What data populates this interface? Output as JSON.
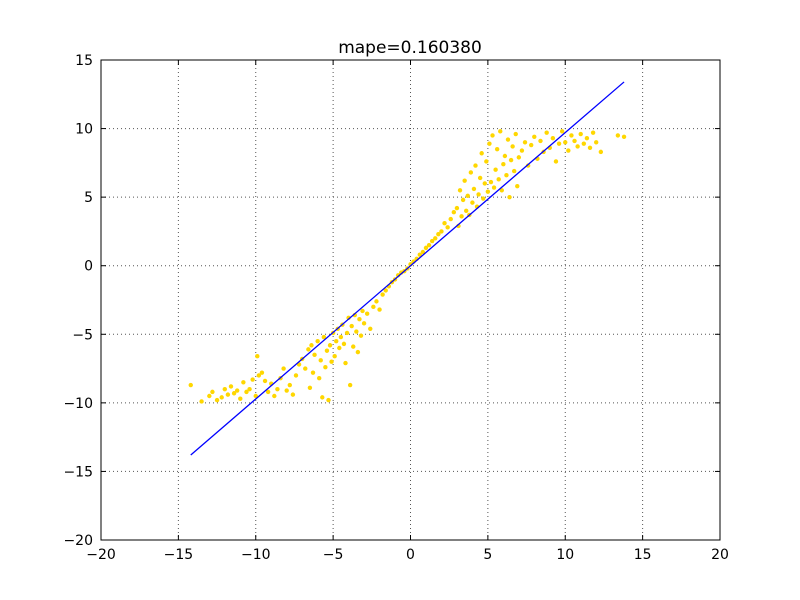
{
  "chart_data": {
    "type": "scatter",
    "title": "mape=0.160380",
    "xlabel": "",
    "ylabel": "",
    "xlim": [
      -20,
      20
    ],
    "ylim": [
      -20,
      15
    ],
    "x_ticks": [
      -20,
      -15,
      -10,
      -5,
      0,
      5,
      10,
      15,
      20
    ],
    "y_ticks": [
      -20,
      -15,
      -10,
      -5,
      0,
      5,
      10,
      15
    ],
    "x_tick_labels": [
      "−20",
      "−15",
      "−10",
      "−5",
      "0",
      "5",
      "10",
      "15",
      "20"
    ],
    "y_tick_labels": [
      "−20",
      "−15",
      "−10",
      "−5",
      "0",
      "5",
      "10",
      "15"
    ],
    "grid": true,
    "grid_style": "dotted",
    "colors": {
      "scatter": "#FFD700",
      "line": "#0000FF",
      "grid": "#555555"
    },
    "series": [
      {
        "kind": "scatter",
        "color": "#FFD700",
        "points": [
          [
            -14.2,
            -8.7
          ],
          [
            -13.5,
            -9.9
          ],
          [
            -13.0,
            -9.5
          ],
          [
            -12.8,
            -9.2
          ],
          [
            -12.5,
            -9.8
          ],
          [
            -12.2,
            -9.6
          ],
          [
            -12.0,
            -9.0
          ],
          [
            -11.8,
            -9.4
          ],
          [
            -11.6,
            -8.8
          ],
          [
            -11.4,
            -9.3
          ],
          [
            -11.2,
            -9.1
          ],
          [
            -11.0,
            -9.7
          ],
          [
            -10.8,
            -8.5
          ],
          [
            -10.6,
            -9.2
          ],
          [
            -10.4,
            -9.0
          ],
          [
            -10.2,
            -8.3
          ],
          [
            -10.0,
            -9.5
          ],
          [
            -9.9,
            -6.6
          ],
          [
            -9.8,
            -8.0
          ],
          [
            -9.6,
            -7.8
          ],
          [
            -9.4,
            -8.4
          ],
          [
            -9.2,
            -9.2
          ],
          [
            -9.0,
            -8.6
          ],
          [
            -8.8,
            -9.5
          ],
          [
            -8.6,
            -9.0
          ],
          [
            -8.4,
            -8.2
          ],
          [
            -8.2,
            -7.5
          ],
          [
            -8.0,
            -9.1
          ],
          [
            -7.8,
            -8.7
          ],
          [
            -7.6,
            -9.4
          ],
          [
            -7.4,
            -8.0
          ],
          [
            -7.2,
            -7.2
          ],
          [
            -7.0,
            -6.8
          ],
          [
            -6.8,
            -7.5
          ],
          [
            -6.6,
            -6.1
          ],
          [
            -6.5,
            -8.9
          ],
          [
            -6.4,
            -5.8
          ],
          [
            -6.3,
            -7.8
          ],
          [
            -6.2,
            -6.5
          ],
          [
            -6.0,
            -5.5
          ],
          [
            -5.9,
            -8.2
          ],
          [
            -5.8,
            -6.9
          ],
          [
            -5.7,
            -9.6
          ],
          [
            -5.6,
            -5.2
          ],
          [
            -5.5,
            -7.4
          ],
          [
            -5.4,
            -6.2
          ],
          [
            -5.3,
            -9.8
          ],
          [
            -5.2,
            -5.8
          ],
          [
            -5.1,
            -7.0
          ],
          [
            -5.0,
            -4.9
          ],
          [
            -4.9,
            -6.6
          ],
          [
            -4.8,
            -5.5
          ],
          [
            -4.7,
            -4.6
          ],
          [
            -4.6,
            -6.0
          ],
          [
            -4.5,
            -5.2
          ],
          [
            -4.4,
            -4.3
          ],
          [
            -4.3,
            -5.7
          ],
          [
            -4.2,
            -7.1
          ],
          [
            -4.1,
            -4.9
          ],
          [
            -4.0,
            -3.8
          ],
          [
            -3.9,
            -8.7
          ],
          [
            -3.8,
            -4.4
          ],
          [
            -3.7,
            -5.9
          ],
          [
            -3.6,
            -3.6
          ],
          [
            -3.5,
            -4.8
          ],
          [
            -3.4,
            -6.3
          ],
          [
            -3.3,
            -3.9
          ],
          [
            -3.2,
            -5.1
          ],
          [
            -3.1,
            -3.3
          ],
          [
            -3.0,
            -4.2
          ],
          [
            -2.8,
            -3.5
          ],
          [
            -2.6,
            -4.6
          ],
          [
            -2.4,
            -3.0
          ],
          [
            -2.2,
            -2.6
          ],
          [
            -2.0,
            -3.2
          ],
          [
            -1.8,
            -2.1
          ],
          [
            -1.6,
            -1.8
          ],
          [
            -1.4,
            -1.5
          ],
          [
            -1.2,
            -1.2
          ],
          [
            -1.0,
            -1.0
          ],
          [
            -0.8,
            -0.7
          ],
          [
            -0.6,
            -0.5
          ],
          [
            -0.4,
            -0.4
          ],
          [
            -0.2,
            -0.2
          ],
          [
            0.0,
            0.1
          ],
          [
            0.2,
            0.3
          ],
          [
            0.4,
            0.5
          ],
          [
            0.6,
            0.8
          ],
          [
            0.8,
            1.0
          ],
          [
            1.0,
            1.3
          ],
          [
            1.2,
            1.5
          ],
          [
            1.4,
            1.8
          ],
          [
            1.6,
            2.0
          ],
          [
            1.8,
            2.3
          ],
          [
            2.0,
            2.5
          ],
          [
            2.2,
            3.1
          ],
          [
            2.4,
            2.8
          ],
          [
            2.6,
            3.4
          ],
          [
            2.8,
            3.9
          ],
          [
            3.0,
            4.2
          ],
          [
            3.1,
            2.9
          ],
          [
            3.2,
            5.5
          ],
          [
            3.3,
            3.6
          ],
          [
            3.4,
            4.8
          ],
          [
            3.5,
            6.2
          ],
          [
            3.6,
            4.0
          ],
          [
            3.7,
            5.1
          ],
          [
            3.8,
            3.7
          ],
          [
            3.9,
            6.8
          ],
          [
            4.0,
            4.6
          ],
          [
            4.1,
            5.6
          ],
          [
            4.2,
            7.3
          ],
          [
            4.3,
            4.3
          ],
          [
            4.4,
            5.2
          ],
          [
            4.5,
            6.4
          ],
          [
            4.6,
            8.2
          ],
          [
            4.7,
            4.9
          ],
          [
            4.8,
            6.0
          ],
          [
            4.9,
            7.6
          ],
          [
            5.0,
            5.4
          ],
          [
            5.1,
            8.9
          ],
          [
            5.2,
            6.1
          ],
          [
            5.3,
            9.5
          ],
          [
            5.4,
            5.7
          ],
          [
            5.5,
            7.0
          ],
          [
            5.6,
            8.5
          ],
          [
            5.7,
            6.3
          ],
          [
            5.8,
            9.8
          ],
          [
            5.9,
            5.5
          ],
          [
            6.0,
            7.4
          ],
          [
            6.1,
            8.0
          ],
          [
            6.2,
            6.6
          ],
          [
            6.3,
            9.2
          ],
          [
            6.4,
            5.0
          ],
          [
            6.5,
            7.7
          ],
          [
            6.6,
            8.7
          ],
          [
            6.7,
            6.9
          ],
          [
            6.8,
            9.6
          ],
          [
            6.9,
            5.8
          ],
          [
            7.0,
            7.9
          ],
          [
            7.2,
            8.4
          ],
          [
            7.4,
            9.0
          ],
          [
            7.6,
            7.3
          ],
          [
            7.8,
            8.8
          ],
          [
            8.0,
            9.4
          ],
          [
            8.2,
            7.8
          ],
          [
            8.4,
            9.1
          ],
          [
            8.6,
            8.3
          ],
          [
            8.8,
            9.7
          ],
          [
            9.0,
            8.6
          ],
          [
            9.2,
            9.3
          ],
          [
            9.4,
            7.6
          ],
          [
            9.6,
            8.9
          ],
          [
            9.8,
            9.8
          ],
          [
            10.0,
            9.0
          ],
          [
            10.2,
            8.4
          ],
          [
            10.4,
            9.5
          ],
          [
            10.6,
            9.1
          ],
          [
            10.8,
            8.7
          ],
          [
            11.0,
            9.6
          ],
          [
            11.2,
            8.9
          ],
          [
            11.4,
            9.3
          ],
          [
            11.6,
            8.6
          ],
          [
            11.8,
            9.7
          ],
          [
            12.0,
            9.0
          ],
          [
            12.3,
            8.3
          ],
          [
            13.4,
            9.5
          ],
          [
            13.8,
            9.4
          ]
        ]
      },
      {
        "kind": "line",
        "color": "#0000FF",
        "points": [
          [
            -14.2,
            -13.8
          ],
          [
            13.8,
            13.4
          ]
        ]
      }
    ]
  }
}
